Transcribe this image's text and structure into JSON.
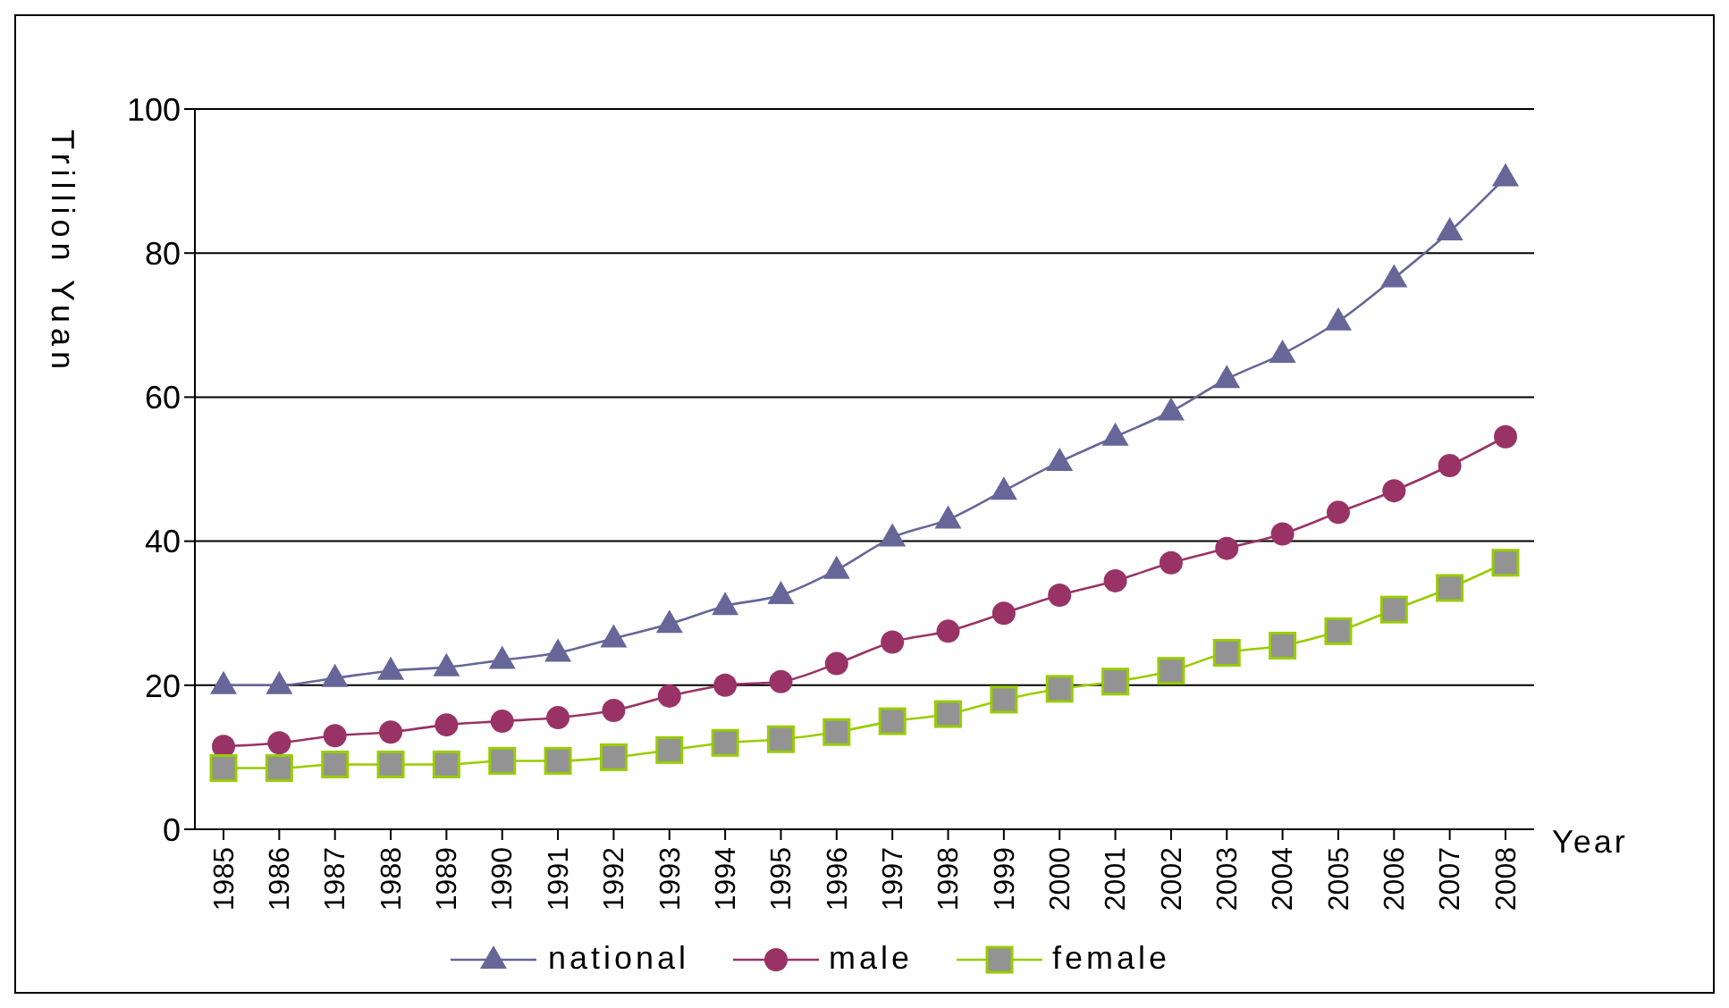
{
  "chart_data": {
    "type": "line",
    "ylabel": "Trillion Yuan",
    "xlabel": "Year",
    "categories": [
      "1985",
      "1986",
      "1987",
      "1988",
      "1989",
      "1990",
      "1991",
      "1992",
      "1993",
      "1994",
      "1995",
      "1996",
      "1997",
      "1998",
      "1999",
      "2000",
      "2001",
      "2002",
      "2003",
      "2004",
      "2005",
      "2006",
      "2007",
      "2008"
    ],
    "series": [
      {
        "name": "national",
        "color": "#666699",
        "marker": "triangle",
        "values": [
          20,
          20,
          21,
          22,
          22.5,
          23.5,
          24.5,
          26.5,
          28.5,
          31,
          32.5,
          36,
          40.5,
          43,
          47,
          51,
          54.5,
          58,
          62.5,
          66,
          70.5,
          76.5,
          83,
          90.5
        ]
      },
      {
        "name": "male",
        "color": "#993366",
        "marker": "circle",
        "values": [
          11.5,
          12,
          13,
          13.5,
          14.5,
          15,
          15.5,
          16.5,
          18.5,
          20,
          20.5,
          23,
          26,
          27.5,
          30,
          32.5,
          34.5,
          37,
          39,
          41,
          44,
          47,
          50.5,
          54.5
        ]
      },
      {
        "name": "female",
        "color": "#99cc00",
        "marker": "square",
        "values": [
          8.5,
          8.5,
          9,
          9,
          9,
          9.5,
          9.5,
          10,
          11,
          12,
          12.5,
          13.5,
          15,
          16,
          18,
          19.5,
          20.5,
          22,
          24.5,
          25.5,
          27.5,
          30.5,
          33.5,
          37
        ]
      }
    ],
    "ylim": [
      0,
      100
    ],
    "yticks": [
      0,
      20,
      40,
      60,
      80,
      100
    ],
    "grid": "y",
    "legend": "bottom",
    "line_style": "solid"
  }
}
